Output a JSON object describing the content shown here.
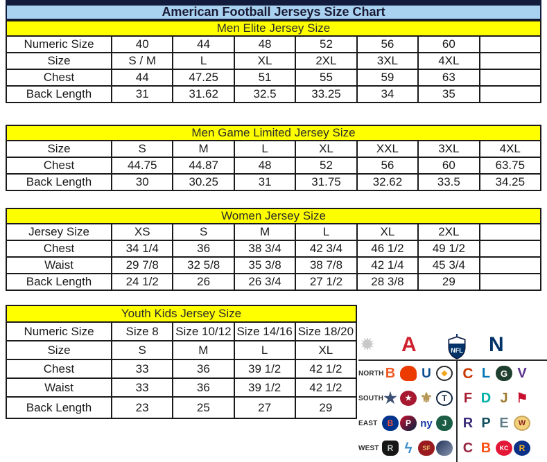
{
  "page": {
    "title": "American Football Jerseys Size Chart"
  },
  "theme": {
    "title_bg": "#a9d2f0",
    "title_text": "#191933",
    "band_bg": "#ffff00",
    "band_text": "#2b2b2b",
    "border": "#1a1a1a",
    "top_bar": "#131b3c",
    "afc_red": "#d0202e",
    "nfc_navy": "#013369"
  },
  "tables": [
    {
      "id": "men-elite",
      "header": "Men Elite Jersey Size",
      "rows": [
        {
          "label": "Numeric Size",
          "values": [
            "40",
            "44",
            "48",
            "52",
            "56",
            "60",
            ""
          ]
        },
        {
          "label": "Size",
          "values": [
            "S / M",
            "L",
            "XL",
            "2XL",
            "3XL",
            "4XL",
            ""
          ]
        },
        {
          "label": "Chest",
          "values": [
            "44",
            "47.25",
            "51",
            "55",
            "59",
            "63",
            ""
          ]
        },
        {
          "label": "Back Length",
          "values": [
            "31",
            "31.62",
            "32.5",
            "33.25",
            "34",
            "35",
            ""
          ]
        }
      ]
    },
    {
      "id": "men-game-limited",
      "header": "Men Game Limited Jersey Size",
      "rows": [
        {
          "label": "Size",
          "values": [
            "S",
            "M",
            "L",
            "XL",
            "XXL",
            "3XL",
            "4XL"
          ]
        },
        {
          "label": "Chest",
          "values": [
            "44.75",
            "44.87",
            "48",
            "52",
            "56",
            "60",
            "63.75"
          ]
        },
        {
          "label": "Back Length",
          "values": [
            "30",
            "30.25",
            "31",
            "31.75",
            "32.62",
            "33.5",
            "34.25"
          ]
        }
      ]
    },
    {
      "id": "women",
      "header": "Women Jersey Size",
      "rows": [
        {
          "label": "Jersey Size",
          "values": [
            "XS",
            "S",
            "M",
            "L",
            "XL",
            "2XL",
            ""
          ]
        },
        {
          "label": "Chest",
          "values": [
            "34 1/4",
            "36",
            "38 3/4",
            "42 3/4",
            "46 1/2",
            "49 1/2",
            ""
          ]
        },
        {
          "label": "Waist",
          "values": [
            "29 7/8",
            "32 5/8",
            "35 3/8",
            "38 7/8",
            "42 1/4",
            "45 3/4",
            ""
          ]
        },
        {
          "label": "Back Length",
          "values": [
            "24 1/2",
            "26",
            "26 3/4",
            "27 1/2",
            "28 3/8",
            "29",
            ""
          ]
        }
      ]
    },
    {
      "id": "youth-kids",
      "header": "Youth Kids Jersey Size",
      "rows": [
        {
          "label": "Numeric Size",
          "values": [
            "Size 8",
            "Size 10/12",
            "Size 14/16",
            "Size 18/20"
          ]
        },
        {
          "label": "Size",
          "values": [
            "S",
            "M",
            "L",
            "XL"
          ]
        },
        {
          "label": "Chest",
          "values": [
            "33",
            "36",
            "39 1/2",
            "42 1/2"
          ]
        },
        {
          "label": "Waist",
          "values": [
            "33",
            "36",
            "39 1/2",
            "42 1/2"
          ]
        },
        {
          "label": "Back Length",
          "values": [
            "23",
            "25",
            "27",
            "29"
          ]
        }
      ]
    }
  ],
  "logo_panel": {
    "header": {
      "starburst_glyph": "✹",
      "afc_glyph": "A",
      "nfl_label": "NFL",
      "nfc_glyph": "N"
    },
    "divisions": [
      {
        "label": "NORTH",
        "afc": [
          {
            "team": "bengals",
            "glyph": "B",
            "shape": "plain",
            "fg": "#f05a24",
            "size": 20
          },
          {
            "team": "browns",
            "glyph": "",
            "shape": "helmet",
            "bg": "#eb3b00",
            "fg": "#ffffff"
          },
          {
            "team": "colts",
            "glyph": "U",
            "shape": "plain",
            "fg": "#0a4e8f",
            "size": 19
          },
          {
            "team": "steelers",
            "glyph": "◆",
            "shape": "ring",
            "fg": "#f2a71b",
            "border": "#2b2b2b",
            "size": 11
          }
        ],
        "nfc": [
          {
            "team": "bears",
            "glyph": "C",
            "shape": "plain",
            "fg": "#c83803",
            "size": 21
          },
          {
            "team": "lions",
            "glyph": "L",
            "shape": "plain",
            "fg": "#0076b6",
            "size": 20
          },
          {
            "team": "packers",
            "glyph": "G",
            "shape": "oval",
            "bg": "#20402f",
            "fg": "#ffffff",
            "size": 13
          },
          {
            "team": "vikings",
            "glyph": "V",
            "shape": "plain",
            "fg": "#59328c",
            "size": 20
          }
        ]
      },
      {
        "label": "SOUTH",
        "afc": [
          {
            "team": "cowboys",
            "glyph": "★",
            "shape": "plain",
            "fg": "#3d5074",
            "size": 22
          },
          {
            "team": "texans",
            "glyph": "★",
            "shape": "circle",
            "bg": "#a71930",
            "fg": "#ffffff",
            "size": 11
          },
          {
            "team": "saints",
            "glyph": "⚜",
            "shape": "plain",
            "fg": "#b49552",
            "size": 20
          },
          {
            "team": "titans",
            "glyph": "T",
            "shape": "ring",
            "fg": "#0c2340",
            "border": "#0c2340",
            "size": 12
          }
        ],
        "nfc": [
          {
            "team": "falcons",
            "glyph": "F",
            "shape": "plain",
            "fg": "#a71930",
            "size": 20
          },
          {
            "team": "dolphins",
            "glyph": "D",
            "shape": "plain",
            "fg": "#00b2a9",
            "size": 20
          },
          {
            "team": "jaguars",
            "glyph": "J",
            "shape": "plain",
            "fg": "#9f7a2f",
            "size": 20
          },
          {
            "team": "buccaneers",
            "glyph": "⚑",
            "shape": "plain",
            "fg": "#c8102e",
            "size": 19
          }
        ]
      },
      {
        "label": "EAST",
        "afc": [
          {
            "team": "bills",
            "glyph": "B",
            "shape": "oval",
            "bg": "#00338d",
            "fg": "#f0503c",
            "size": 12
          },
          {
            "team": "patriots",
            "glyph": "P",
            "shape": "oval",
            "bg": "#c8102e",
            "bg2": "#002244",
            "fg": "#ffffff",
            "size": 12
          },
          {
            "team": "giants",
            "glyph": "ny",
            "shape": "plain",
            "fg": "#1235a0",
            "size": 15
          },
          {
            "team": "jets",
            "glyph": "J",
            "shape": "oval",
            "bg": "#1b5e45",
            "fg": "#ffffff",
            "size": 12
          }
        ],
        "nfc": [
          {
            "team": "ravens",
            "glyph": "R",
            "shape": "plain",
            "fg": "#3d2d7a",
            "size": 20
          },
          {
            "team": "panthers",
            "glyph": "P",
            "shape": "plain",
            "fg": "#13505e",
            "size": 20
          },
          {
            "team": "eagles",
            "glyph": "E",
            "shape": "plain",
            "fg": "#5e7d86",
            "size": 20
          },
          {
            "team": "redskins",
            "glyph": "W",
            "shape": "circle",
            "bg": "#f3d27c",
            "fg": "#8a1e1e",
            "border": "#c9a45c",
            "size": 11
          }
        ]
      },
      {
        "label": "WEST",
        "afc": [
          {
            "team": "raiders",
            "glyph": "R",
            "shape": "shield",
            "bg": "#161616",
            "fg": "#c0c6c9",
            "size": 12
          },
          {
            "team": "chargers",
            "glyph": "ϟ",
            "shape": "plain",
            "fg": "#3a8dcc",
            "size": 21
          },
          {
            "team": "49ers",
            "glyph": "SF",
            "shape": "oval",
            "bg": "#9a1b1f",
            "fg": "#e3b366",
            "size": 9
          },
          {
            "team": "seahawks",
            "glyph": "",
            "shape": "oval",
            "bg": "#24335c",
            "bg2": "#8595ad",
            "fg": "#69be28"
          }
        ],
        "nfc": [
          {
            "team": "cardinals",
            "glyph": "C",
            "shape": "plain",
            "fg": "#97233f",
            "size": 20
          },
          {
            "team": "broncos",
            "glyph": "B",
            "shape": "plain",
            "fg": "#fb4f14",
            "size": 20
          },
          {
            "team": "chiefs",
            "glyph": "KC",
            "shape": "circle",
            "bg": "#e31837",
            "fg": "#ffffff",
            "size": 9
          },
          {
            "team": "rams",
            "glyph": "R",
            "shape": "circle",
            "bg": "#0b3087",
            "fg": "#f7b21e",
            "size": 12
          }
        ]
      }
    ]
  }
}
